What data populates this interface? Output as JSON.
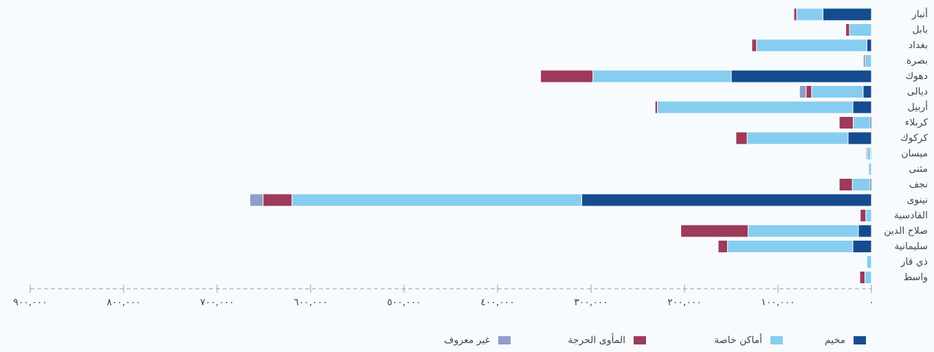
{
  "chart_data": {
    "type": "bar",
    "orientation": "horizontal",
    "stacked": true,
    "categories": [
      "أنبار",
      "بابل",
      "بغداد",
      "بصرة",
      "دهوك",
      "ديالى",
      "أربيل",
      "كربلاء",
      "كركوك",
      "ميسان",
      "مثنى",
      "نجف",
      "نينوى",
      "القادسية",
      "صلاح الدين",
      "سليمانية",
      "ذي قار",
      "واسط"
    ],
    "series": [
      {
        "name": "مخيم",
        "color": "#154c8f",
        "values": [
          52000,
          0,
          5000,
          0,
          150000,
          9000,
          20000,
          1500,
          25000,
          1000,
          0,
          1500,
          310000,
          0,
          14000,
          20000,
          0,
          0
        ]
      },
      {
        "name": "أماكن خاصة",
        "color": "#87cdf0",
        "values": [
          28000,
          23500,
          118000,
          7000,
          148000,
          55000,
          209000,
          18000,
          108000,
          4000,
          3000,
          19000,
          310000,
          6000,
          118000,
          134000,
          5000,
          7000
        ]
      },
      {
        "name": "المأوى الحرجة",
        "color": "#9e3a5a",
        "values": [
          3000,
          4000,
          5000,
          1500,
          56000,
          6000,
          2500,
          15000,
          12000,
          1000,
          800,
          14000,
          31000,
          6000,
          72000,
          10000,
          0,
          5500
        ]
      },
      {
        "name": "غير معروف",
        "color": "#8f9dca",
        "values": [
          0,
          0,
          0,
          0,
          0,
          7000,
          0,
          0,
          0,
          0,
          0,
          0,
          14000,
          0,
          0,
          0,
          0,
          0
        ]
      }
    ],
    "xlim": [
      0,
      900000
    ],
    "xticks": [
      {
        "value": 0,
        "label": "٠"
      },
      {
        "value": 100000,
        "label": "١٠٠,٠٠٠"
      },
      {
        "value": 200000,
        "label": "٢٠٠,٠٠٠"
      },
      {
        "value": 300000,
        "label": "٣٠٠,٠٠٠"
      },
      {
        "value": 400000,
        "label": "٤٠٠,٠٠٠"
      },
      {
        "value": 500000,
        "label": "٥٠٠,٠٠٠"
      },
      {
        "value": 600000,
        "label": "٦٠٠,٠٠٠"
      },
      {
        "value": 700000,
        "label": "٧٠٠,٠٠٠"
      },
      {
        "value": 800000,
        "label": "٨٠٠,٠٠٠"
      },
      {
        "value": 900000,
        "label": "٩٠٠,٠٠٠"
      }
    ],
    "legend": "bottom"
  }
}
